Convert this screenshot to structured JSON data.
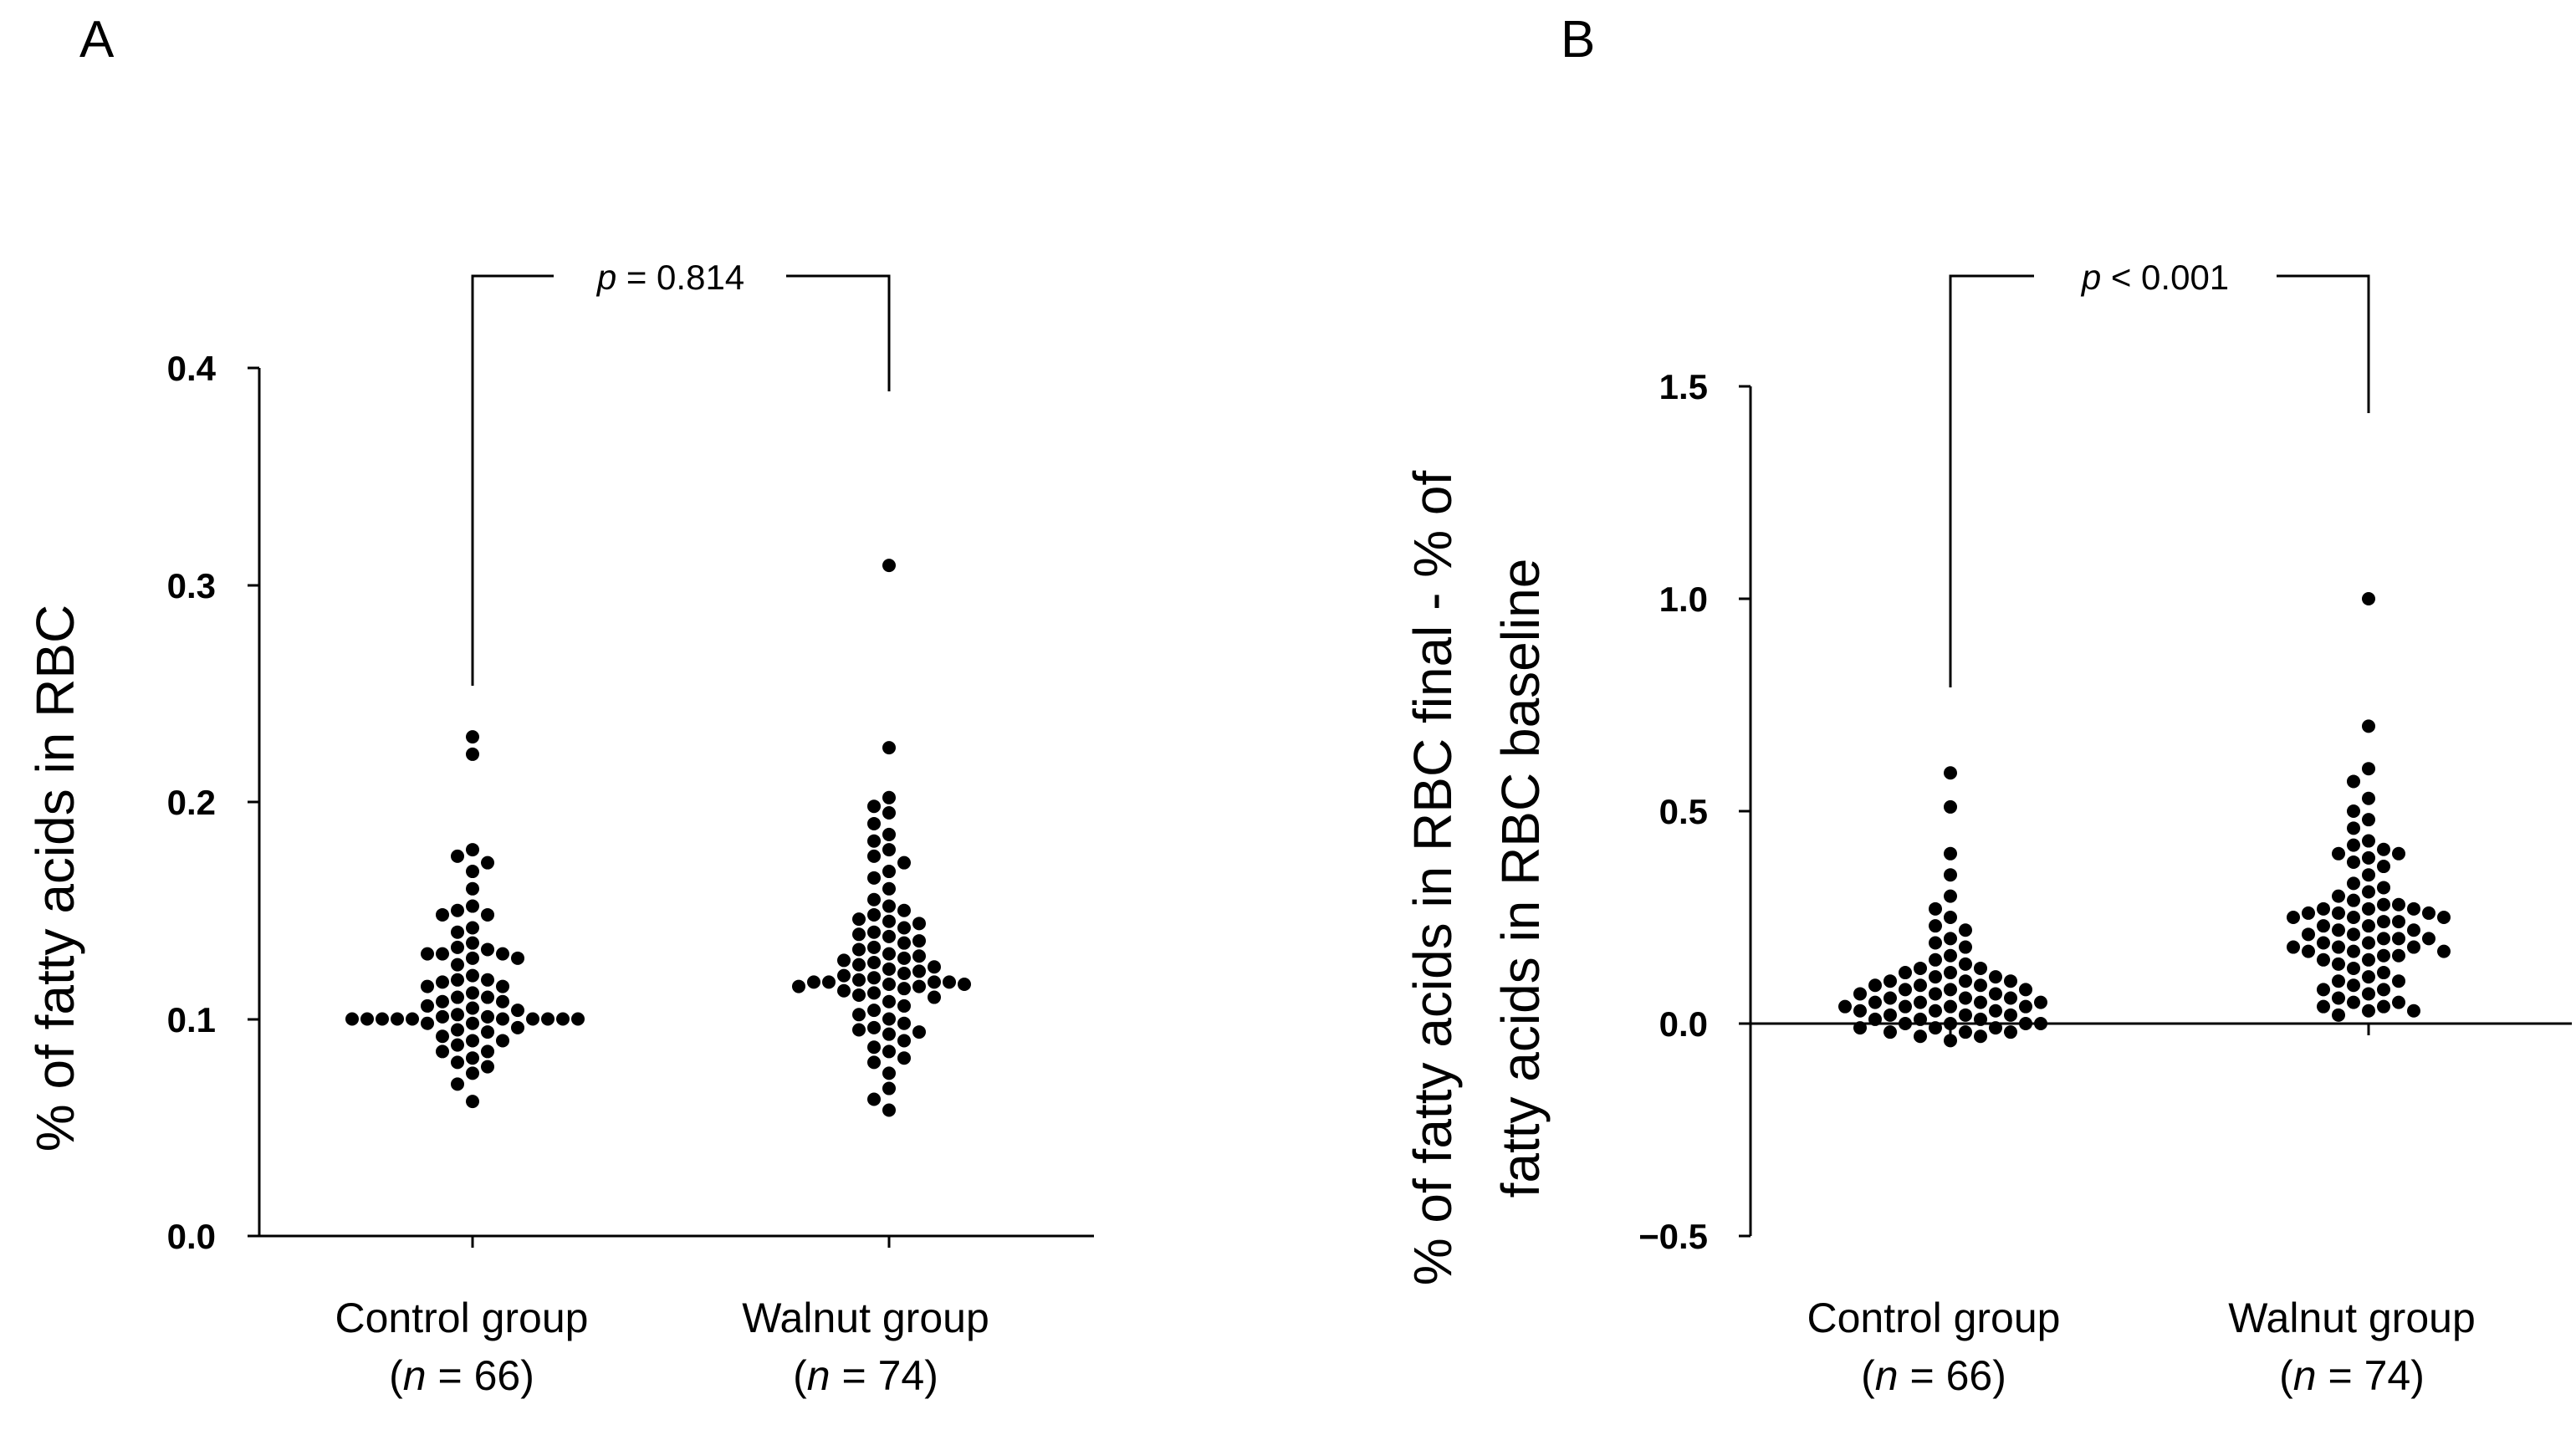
{
  "chart_data": [
    {
      "panel": "A",
      "type": "scatter",
      "subtype": "dot-plot",
      "ylabel": "% of fatty acids in RBC",
      "ylim": [
        0.0,
        0.4
      ],
      "yticks": [
        "0.0",
        "0.1",
        "0.2",
        "0.3",
        "0.4"
      ],
      "yticks_values": [
        0.0,
        0.1,
        0.2,
        0.3,
        0.4
      ],
      "baseline_at_zero": false,
      "categories": [
        {
          "name": "Control group",
          "n_prefix": "(",
          "n_italic": "n",
          "n_suffix": " = 66)"
        },
        {
          "name": "Walnut group",
          "n_prefix": "(",
          "n_italic": "n",
          "n_suffix": " = 74)"
        }
      ],
      "comparison": {
        "p_italic": "p",
        "p_text": " = 0.814"
      },
      "series": [
        {
          "name": "Control group",
          "values": [
            0.23,
            0.222,
            0.178,
            0.175,
            0.172,
            0.168,
            0.16,
            0.152,
            0.15,
            0.148,
            0.148,
            0.142,
            0.14,
            0.135,
            0.133,
            0.132,
            0.13,
            0.13,
            0.13,
            0.128,
            0.128,
            0.125,
            0.12,
            0.118,
            0.118,
            0.117,
            0.115,
            0.115,
            0.112,
            0.11,
            0.11,
            0.108,
            0.108,
            0.106,
            0.105,
            0.104,
            0.102,
            0.101,
            0.101,
            0.1,
            0.1,
            0.1,
            0.1,
            0.1,
            0.1,
            0.1,
            0.1,
            0.1,
            0.1,
            0.098,
            0.098,
            0.096,
            0.095,
            0.094,
            0.092,
            0.09,
            0.09,
            0.088,
            0.085,
            0.085,
            0.082,
            0.08,
            0.078,
            0.075,
            0.07,
            0.062
          ]
        },
        {
          "name": "Walnut group",
          "values": [
            0.309,
            0.225,
            0.202,
            0.198,
            0.195,
            0.19,
            0.185,
            0.182,
            0.178,
            0.175,
            0.172,
            0.168,
            0.165,
            0.16,
            0.155,
            0.152,
            0.15,
            0.148,
            0.146,
            0.145,
            0.144,
            0.142,
            0.14,
            0.139,
            0.138,
            0.136,
            0.135,
            0.133,
            0.132,
            0.13,
            0.129,
            0.128,
            0.127,
            0.126,
            0.125,
            0.124,
            0.123,
            0.122,
            0.121,
            0.12,
            0.119,
            0.118,
            0.117,
            0.117,
            0.117,
            0.117,
            0.116,
            0.116,
            0.115,
            0.115,
            0.114,
            0.113,
            0.112,
            0.111,
            0.11,
            0.108,
            0.106,
            0.104,
            0.102,
            0.1,
            0.098,
            0.096,
            0.095,
            0.094,
            0.093,
            0.09,
            0.087,
            0.085,
            0.082,
            0.08,
            0.075,
            0.068,
            0.063,
            0.058
          ]
        }
      ]
    },
    {
      "panel": "B",
      "type": "scatter",
      "subtype": "dot-plot",
      "ylabel_line1": "% of fatty acids in RBC final - % of",
      "ylabel_line2": "fatty acids in RBC baseline",
      "ylim": [
        -0.5,
        1.5
      ],
      "yticks": [
        "−0.5",
        "0.0",
        "0.5",
        "1.0",
        "1.5"
      ],
      "yticks_values": [
        -0.5,
        0.0,
        0.5,
        1.0,
        1.5
      ],
      "baseline_at_zero": true,
      "categories": [
        {
          "name": "Control group",
          "n_prefix": "(",
          "n_italic": "n",
          "n_suffix": " = 66)"
        },
        {
          "name": "Walnut group",
          "n_prefix": "(",
          "n_italic": "n",
          "n_suffix": " = 74)"
        }
      ],
      "comparison": {
        "p_italic": "p",
        "p_text": " < 0.001"
      },
      "series": [
        {
          "name": "Control group",
          "values": [
            0.59,
            0.51,
            0.4,
            0.35,
            0.3,
            0.27,
            0.25,
            0.23,
            0.22,
            0.2,
            0.19,
            0.18,
            0.16,
            0.15,
            0.14,
            0.13,
            0.13,
            0.12,
            0.12,
            0.11,
            0.11,
            0.1,
            0.1,
            0.1,
            0.09,
            0.09,
            0.09,
            0.08,
            0.08,
            0.08,
            0.07,
            0.07,
            0.07,
            0.06,
            0.06,
            0.06,
            0.05,
            0.05,
            0.05,
            0.05,
            0.04,
            0.04,
            0.04,
            0.04,
            0.03,
            0.03,
            0.03,
            0.02,
            0.02,
            0.02,
            0.01,
            0.01,
            0.01,
            0.0,
            0.0,
            0.0,
            0.0,
            -0.01,
            -0.01,
            -0.01,
            -0.02,
            -0.02,
            -0.02,
            -0.03,
            -0.03,
            -0.04
          ]
        },
        {
          "name": "Walnut group",
          "values": [
            1.0,
            0.7,
            0.6,
            0.57,
            0.53,
            0.5,
            0.48,
            0.46,
            0.43,
            0.42,
            0.41,
            0.4,
            0.4,
            0.39,
            0.38,
            0.37,
            0.35,
            0.33,
            0.32,
            0.31,
            0.3,
            0.29,
            0.28,
            0.28,
            0.27,
            0.27,
            0.27,
            0.26,
            0.26,
            0.26,
            0.25,
            0.25,
            0.25,
            0.24,
            0.24,
            0.23,
            0.23,
            0.22,
            0.22,
            0.21,
            0.21,
            0.2,
            0.2,
            0.2,
            0.19,
            0.19,
            0.18,
            0.18,
            0.18,
            0.17,
            0.17,
            0.17,
            0.16,
            0.16,
            0.15,
            0.15,
            0.14,
            0.13,
            0.12,
            0.11,
            0.1,
            0.1,
            0.09,
            0.08,
            0.08,
            0.07,
            0.06,
            0.05,
            0.05,
            0.04,
            0.04,
            0.03,
            0.03,
            0.02
          ]
        }
      ]
    }
  ]
}
